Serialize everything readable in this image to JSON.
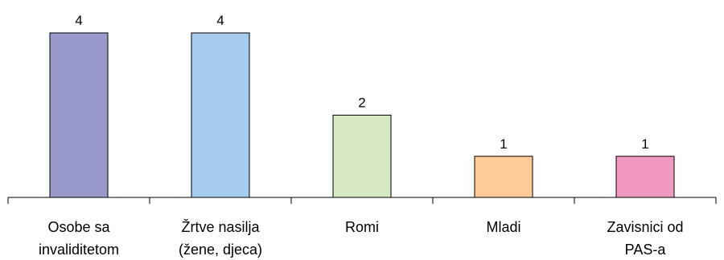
{
  "chart_data": {
    "type": "bar",
    "categories": [
      [
        "Osobe sa",
        "invaliditetom"
      ],
      [
        "Žrtve nasilja",
        "(žene, djeca)"
      ],
      [
        "Romi"
      ],
      [
        "Mladi"
      ],
      [
        "Zavisnici od",
        "PAS-a"
      ]
    ],
    "values": [
      4,
      4,
      2,
      1,
      1
    ],
    "data_labels": [
      "4",
      "4",
      "2",
      "1",
      "1"
    ],
    "colors": [
      "#9999cc",
      "#a6cbee",
      "#d6e8c4",
      "#ffcc99",
      "#f09ac2"
    ],
    "ylim": [
      0,
      4
    ],
    "grid": false,
    "legend": "none"
  }
}
